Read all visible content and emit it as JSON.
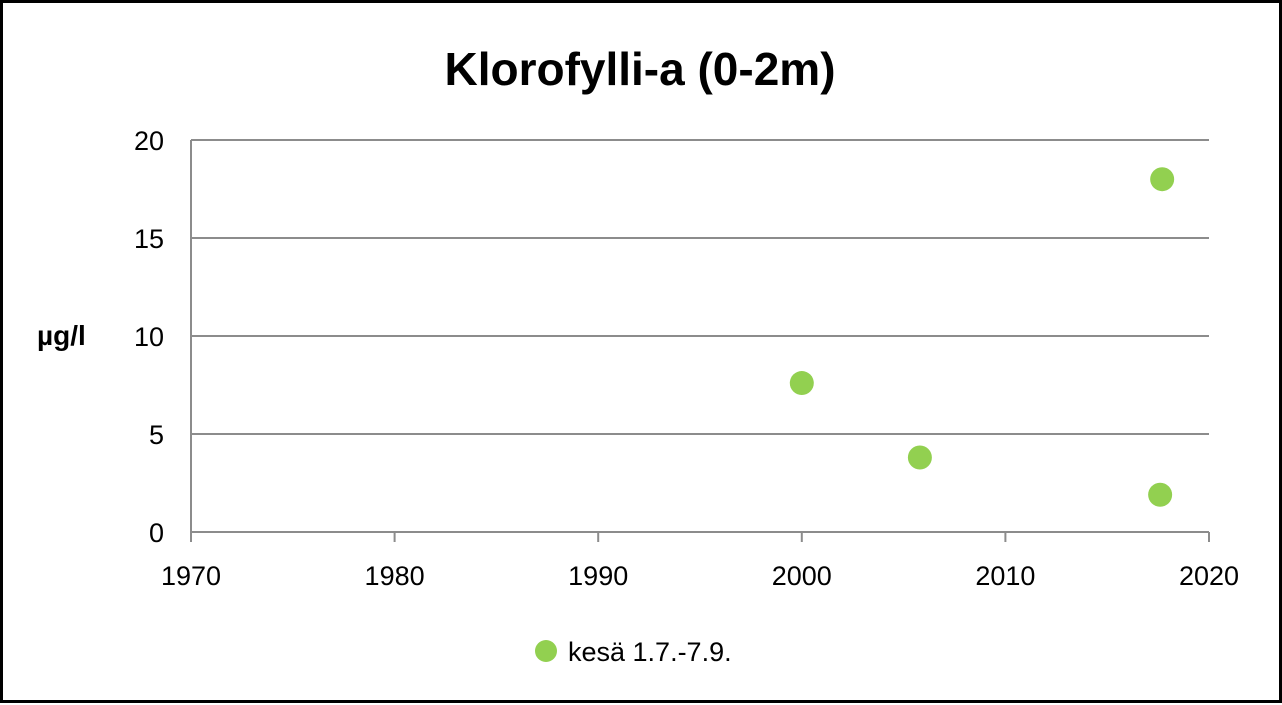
{
  "chart_data": {
    "type": "scatter",
    "title": "Klorofylli-a (0-2m)",
    "xlabel": "",
    "ylabel": "µg/l",
    "xlim": [
      1970,
      2020
    ],
    "ylim": [
      0,
      20
    ],
    "xticks": [
      "1970",
      "1980",
      "1990",
      "2000",
      "2010",
      "2020"
    ],
    "yticks": [
      "0",
      "5",
      "10",
      "15",
      "20"
    ],
    "grid": "horizontal",
    "legend_position": "bottom",
    "series": [
      {
        "name": "kesä 1.7.-7.9.",
        "color": "#92D050",
        "points": [
          {
            "x": 2000.0,
            "y": 7.6
          },
          {
            "x": 2005.8,
            "y": 3.8
          },
          {
            "x": 2017.7,
            "y": 18.0
          },
          {
            "x": 2017.6,
            "y": 1.9
          }
        ]
      }
    ]
  }
}
